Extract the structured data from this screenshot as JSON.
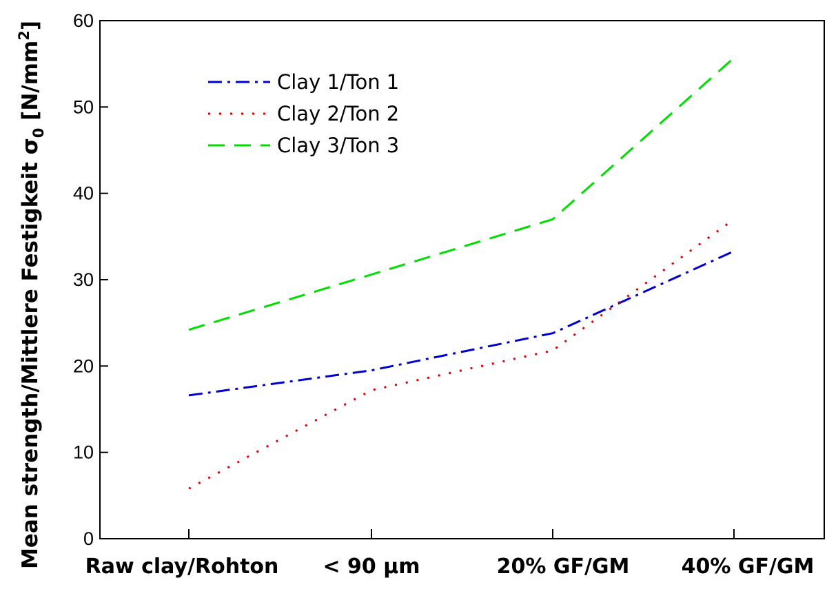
{
  "chart_data": {
    "type": "line",
    "categories": [
      "Raw clay/Rohton",
      "< 90 µm",
      "20% GF/GM",
      "40% GF/GM"
    ],
    "ylabel": {
      "main": "Mean strength/Mittlere Festigkeit σ",
      "subscript": "0",
      "unit_open": " [N/mm",
      "superscript": "2",
      "unit_close": "]"
    },
    "ylim": [
      0,
      60
    ],
    "yticks": [
      "0",
      "10",
      "20",
      "30",
      "40",
      "50",
      "60"
    ],
    "legend_position": "top-left",
    "grid": false,
    "series": [
      {
        "name": "Clay 1/Ton 1",
        "values": [
          16.6,
          19.5,
          23.8,
          33.3
        ],
        "color": "#0000cc",
        "style": "dash-dot"
      },
      {
        "name": "Clay 2/Ton 2",
        "values": [
          5.8,
          17.2,
          21.8,
          37.0
        ],
        "color": "#dd0000",
        "style": "dotted"
      },
      {
        "name": "Clay 3/Ton 3",
        "values": [
          24.2,
          30.6,
          37.0,
          55.7
        ],
        "color": "#00dd00",
        "style": "dashed"
      }
    ]
  }
}
